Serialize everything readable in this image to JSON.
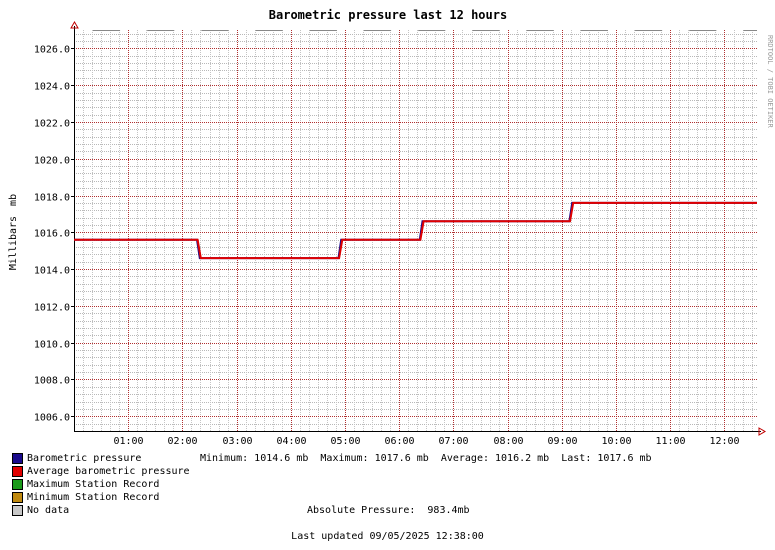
{
  "chart_data": {
    "type": "line",
    "title": "Barometric pressure last 12 hours",
    "ylabel": "Millibars",
    "yunit": "mb",
    "side_credit": "RRDTOOL / TOBI OETIKER",
    "ylim": [
      1005.2,
      1027.0
    ],
    "yticks": [
      "1006.0",
      "1008.0",
      "1010.0",
      "1012.0",
      "1014.0",
      "1016.0",
      "1018.0",
      "1020.0",
      "1022.0",
      "1024.0",
      "1026.0"
    ],
    "xlim": [
      0.0,
      12.6
    ],
    "xticks": [
      {
        "x": 1,
        "label": "01:00"
      },
      {
        "x": 2,
        "label": "02:00"
      },
      {
        "x": 3,
        "label": "03:00"
      },
      {
        "x": 4,
        "label": "04:00"
      },
      {
        "x": 5,
        "label": "05:00"
      },
      {
        "x": 6,
        "label": "06:00"
      },
      {
        "x": 7,
        "label": "07:00"
      },
      {
        "x": 8,
        "label": "08:00"
      },
      {
        "x": 9,
        "label": "09:00"
      },
      {
        "x": 10,
        "label": "10:00"
      },
      {
        "x": 11,
        "label": "11:00"
      },
      {
        "x": 12,
        "label": "12:00"
      }
    ],
    "grid": true,
    "series": [
      {
        "name": "Barometric pressure",
        "color": "#1a0a8c",
        "x": [
          0.0,
          2.27,
          2.32,
          4.88,
          4.93,
          6.38,
          6.43,
          9.14,
          9.19,
          12.6
        ],
        "y": [
          1015.6,
          1015.6,
          1014.6,
          1014.6,
          1015.6,
          1015.6,
          1016.6,
          1016.6,
          1017.6,
          1017.6
        ]
      },
      {
        "name": "Average barometric pressure",
        "color": "#e00000",
        "x": [
          0.0,
          2.28,
          2.34,
          4.89,
          4.95,
          6.39,
          6.45,
          9.15,
          9.21,
          12.6
        ],
        "y": [
          1015.6,
          1015.6,
          1014.6,
          1014.6,
          1015.6,
          1015.6,
          1016.6,
          1016.6,
          1017.6,
          1017.6
        ]
      }
    ]
  },
  "legend": [
    {
      "label": "Barometric pressure",
      "color": "#1a0a8c"
    },
    {
      "label": "Average barometric pressure",
      "color": "#e00000"
    },
    {
      "label": "Maximum Station Record",
      "color": "#1a9a1a"
    },
    {
      "label": "Minimum Station Record",
      "color": "#c08a10"
    },
    {
      "label": "No data",
      "color": "#c8c8c8"
    }
  ],
  "stats_text": "Minimum: 1014.6 mb  Maximum: 1017.6 mb  Average: 1016.2 mb  Last: 1017.6 mb",
  "absolute_text": "Absolute Pressure:  983.4mb",
  "updated_text": "Last updated 09/05/2025 12:38:00"
}
